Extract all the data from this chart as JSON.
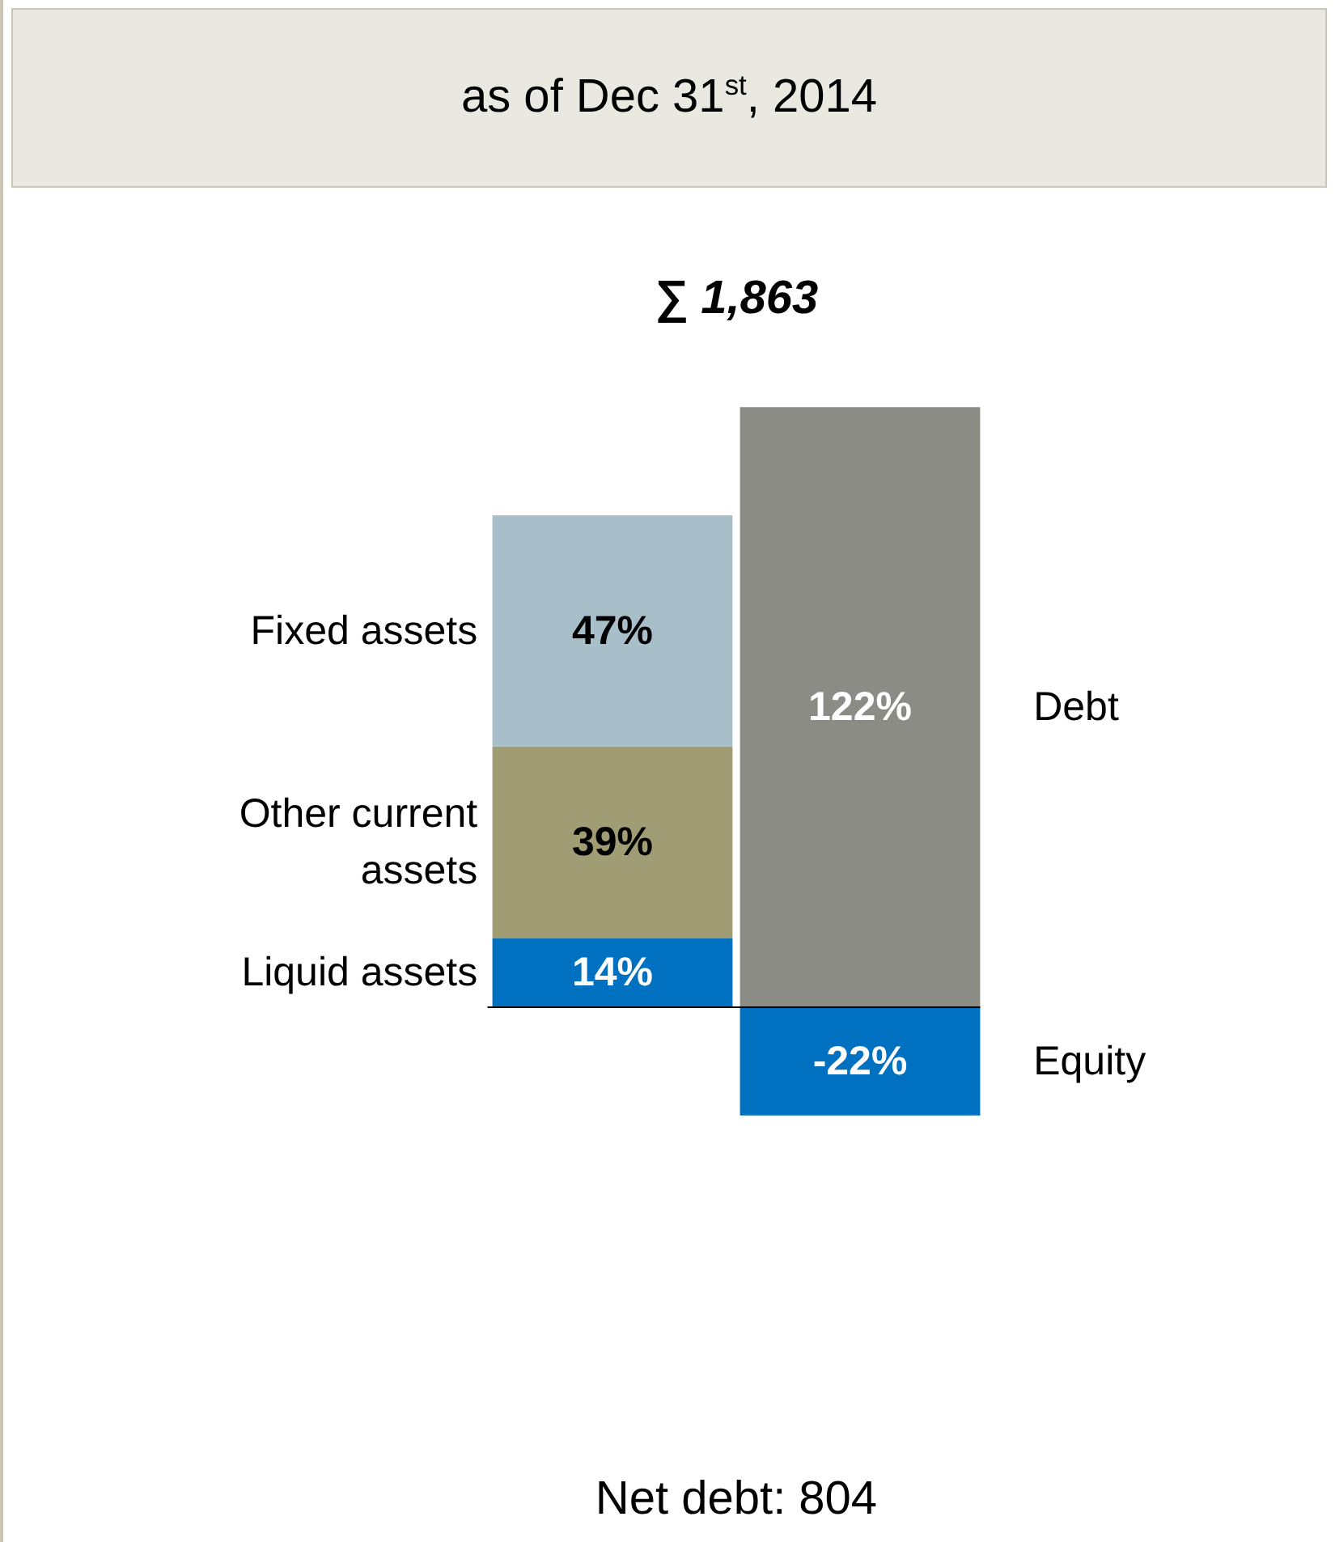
{
  "chart_data": {
    "type": "bar",
    "stacked": true,
    "relative": false,
    "title": "as of Dec 31$^{st}$, 2014",
    "subtitle": "∑ 1,863",
    "categories": [
      null,
      null
    ],
    "series": [
      {
        "name": "Liquid assets",
        "color": "#0070c0",
        "values": [
          14,
          null
        ],
        "value_labels": [
          "14%",
          null
        ]
      },
      {
        "name": "Other current assets",
        "color": "#a09c74",
        "values": [
          39,
          null
        ],
        "value_labels": [
          "39%",
          null
        ]
      },
      {
        "name": "Fixed assets",
        "color": "#a8bfca",
        "values": [
          47,
          null
        ],
        "value_labels": [
          "47%",
          null
        ]
      },
      {
        "name": "Debt",
        "color": "#8c8c87",
        "values": [
          null,
          122
        ],
        "value_labels": [
          null,
          "122%"
        ]
      },
      {
        "name": "Equity",
        "color": "#0070c0",
        "values": [
          null,
          -22
        ],
        "value_labels": [
          null,
          "-22%"
        ]
      }
    ],
    "annotations": [
      "Net debt: 804"
    ]
  }
}
